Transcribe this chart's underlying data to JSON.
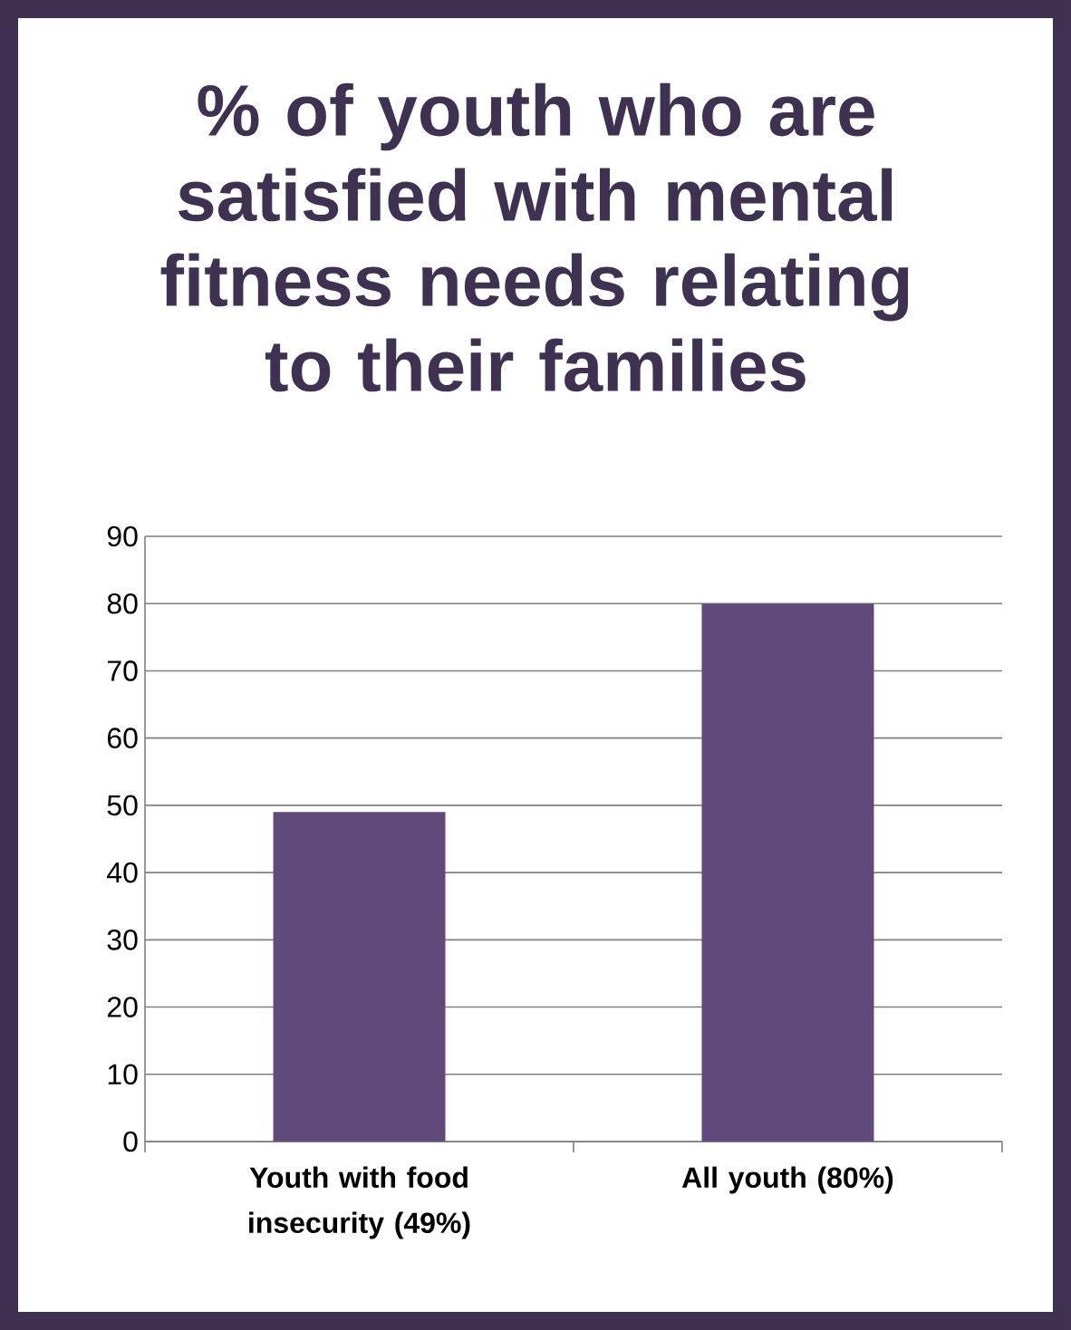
{
  "chart_data": {
    "type": "bar",
    "title": "% of youth who are satisfied with mental fitness needs relating to their families",
    "categories": [
      "Youth with food insecurity (49%)",
      "All youth (80%)"
    ],
    "values": [
      49,
      80
    ],
    "color": "#604a7b",
    "ylim": [
      0,
      90
    ],
    "yticks": [
      0,
      10,
      20,
      30,
      40,
      50,
      60,
      70,
      80,
      90
    ],
    "grid": "y"
  }
}
